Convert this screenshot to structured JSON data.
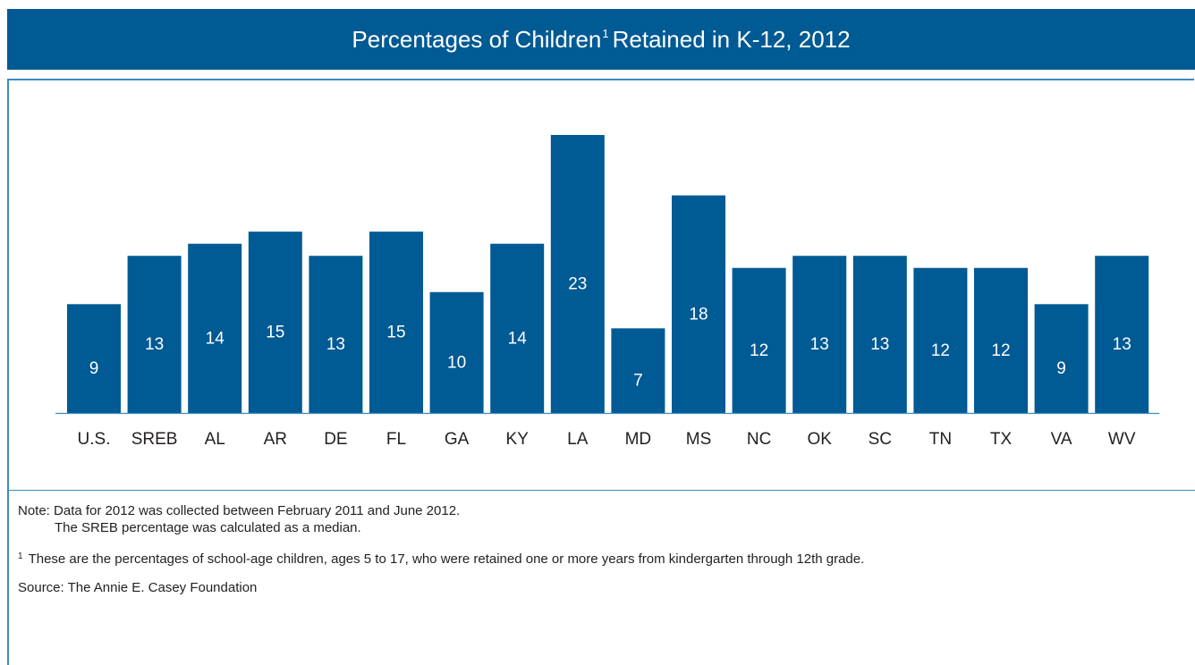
{
  "header": {
    "title_main": "Percentages of Children",
    "title_sup": "1",
    "title_rest": "Retained in K-12, 2012"
  },
  "colors": {
    "bar": "#005a94",
    "header": "#005a94",
    "rule": "#3c8bbf"
  },
  "chart_data": {
    "type": "bar",
    "title": "Percentages of Children¹ Retained in K-12, 2012",
    "xlabel": "",
    "ylabel": "",
    "categories": [
      "U.S.",
      "SREB",
      "AL",
      "AR",
      "DE",
      "FL",
      "GA",
      "KY",
      "LA",
      "MD",
      "MS",
      "NC",
      "OK",
      "SC",
      "TN",
      "TX",
      "VA",
      "WV"
    ],
    "values": [
      9,
      13,
      14,
      15,
      13,
      15,
      10,
      14,
      23,
      7,
      18,
      12,
      13,
      13,
      12,
      12,
      9,
      13
    ],
    "ylim": [
      0,
      23
    ],
    "grid": false,
    "data_labels": true
  },
  "notes": {
    "note_line1": "Note: Data for 2012 was collected between February 2011 and June 2012.",
    "note_line2": "The SREB percentage was calculated as a median.",
    "footnote_marker": "1",
    "footnote_text": "These are the percentages of school-age children, ages 5 to 17, who were retained one or more years from kindergarten through 12th grade.",
    "source": "Source: The Annie E. Casey Foundation"
  }
}
